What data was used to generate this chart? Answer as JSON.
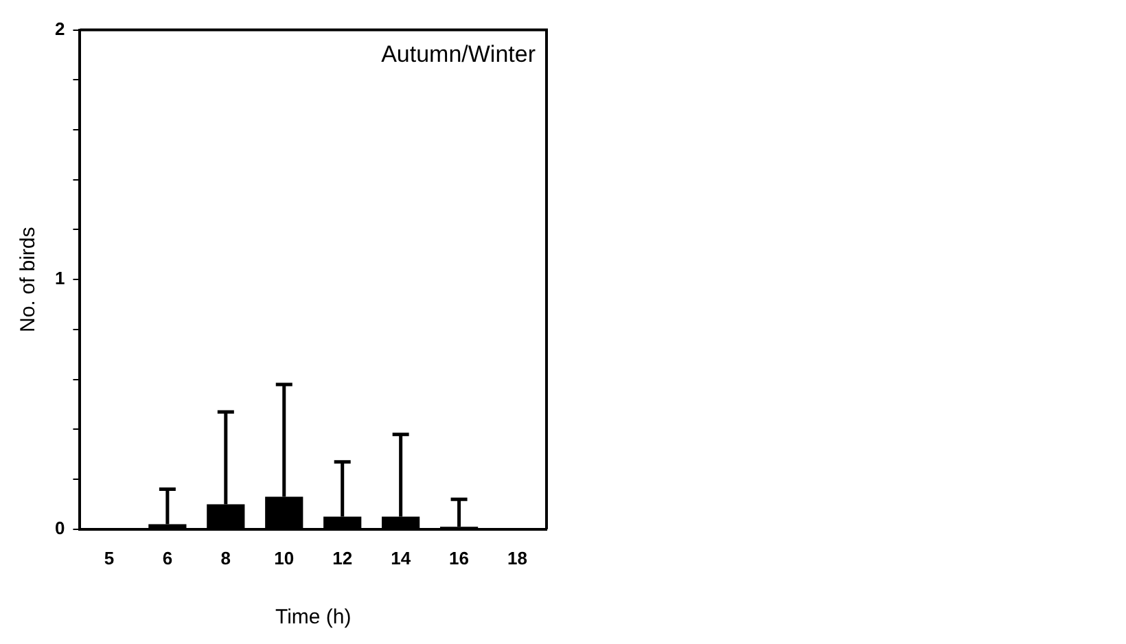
{
  "chart_data": {
    "type": "bar",
    "xlabel": "Time (h)",
    "ylabel": "No. of birds",
    "annotations": [
      "Autumn/Winter"
    ],
    "categories": [
      "5",
      "6",
      "8",
      "10",
      "12",
      "14",
      "16",
      "18"
    ],
    "values": [
      0,
      0.02,
      0.1,
      0.13,
      0.05,
      0.05,
      0.01,
      0
    ],
    "errors": [
      null,
      [
        0.02,
        0.16
      ],
      [
        0.1,
        0.47
      ],
      [
        0.13,
        0.58
      ],
      [
        0.05,
        0.27
      ],
      [
        0.05,
        0.38
      ],
      [
        0.01,
        0.12
      ],
      null
    ],
    "color": "#000000",
    "ylim": [
      0,
      2
    ],
    "yticks": [
      0,
      {
        "value": 0.2,
        "label": null
      },
      {
        "value": 0.4,
        "label": null
      },
      {
        "value": 0.6,
        "label": null
      },
      {
        "value": 0.8,
        "label": null
      },
      1,
      {
        "value": 1.2,
        "label": null
      },
      {
        "value": 1.4,
        "label": null
      },
      {
        "value": 1.6,
        "label": null
      },
      {
        "value": 1.8,
        "label": null
      },
      2
    ],
    "grid": false,
    "legend": false
  }
}
